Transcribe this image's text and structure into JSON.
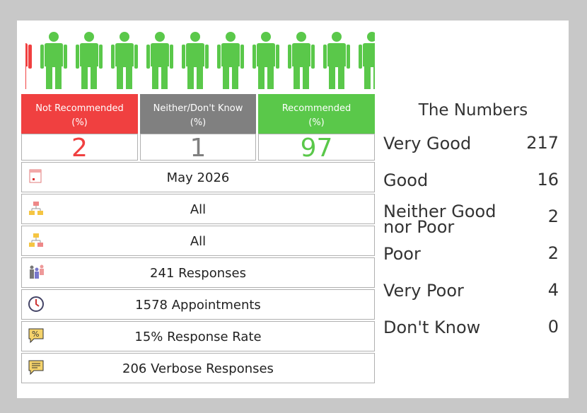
{
  "summary": [
    {
      "label": "Not Recommended",
      "unit": "(%)",
      "value": "2"
    },
    {
      "label": "Neither/Don't Know",
      "unit": "(%)",
      "value": "1"
    },
    {
      "label": "Recommended",
      "unit": "(%)",
      "value": "97"
    }
  ],
  "details": [
    "May 2026",
    "All",
    "All",
    "241 Responses",
    "1578 Appointments",
    "15% Response Rate",
    "206 Verbose Responses"
  ],
  "numbers": {
    "title": "The Numbers",
    "rows": [
      {
        "label": "Very Good",
        "value": "217"
      },
      {
        "label": "Good",
        "value": "16"
      },
      {
        "label": "Neither Good nor Poor",
        "value": "2"
      },
      {
        "label": "Poor",
        "value": "2"
      },
      {
        "label": "Very Poor",
        "value": "4"
      },
      {
        "label": "Don't Know",
        "value": "0"
      }
    ]
  }
}
